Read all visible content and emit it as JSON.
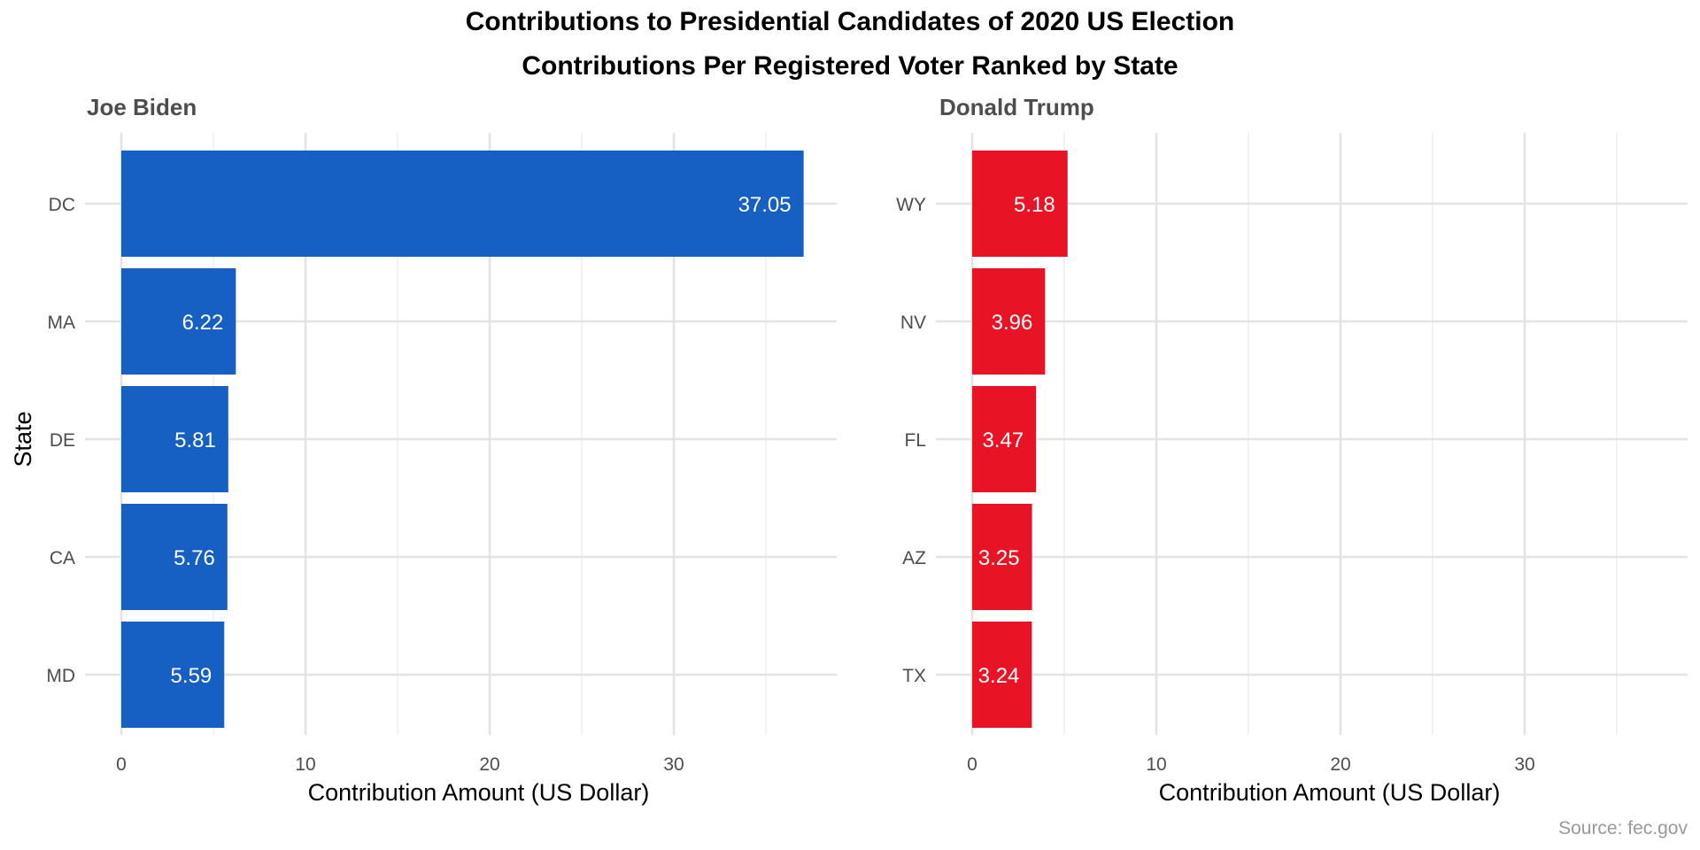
{
  "chart_data": {
    "type": "bar",
    "orientation": "horizontal",
    "title": "Contributions to Presidential Candidates of 2020 US Election",
    "subtitle": "Contributions Per Registered Voter Ranked by State",
    "ylabel": "State",
    "caption": "Source: fec.gov",
    "xlim": [
      0,
      38
    ],
    "x_ticks": [
      "0",
      "10",
      "20",
      "30"
    ],
    "x_tick_values": [
      0,
      10,
      20,
      30
    ],
    "grid": true,
    "legend": "none",
    "panels": [
      {
        "name": "Joe Biden",
        "color": "#1660C4",
        "xlabel": "Contribution Amount (US Dollar)",
        "categories": [
          "DC",
          "MA",
          "DE",
          "CA",
          "MD"
        ],
        "values": [
          37.05,
          6.22,
          5.81,
          5.76,
          5.59
        ],
        "value_labels": [
          "37.05",
          "6.22",
          "5.81",
          "5.76",
          "5.59"
        ]
      },
      {
        "name": "Donald Trump",
        "color": "#E81425",
        "xlabel": "Contribution Amount (US Dollar)",
        "categories": [
          "WY",
          "NV",
          "FL",
          "AZ",
          "TX"
        ],
        "values": [
          5.18,
          3.96,
          3.47,
          3.25,
          3.24
        ],
        "value_labels": [
          "5.18",
          "3.96",
          "3.47",
          "3.25",
          "3.24"
        ]
      }
    ]
  }
}
